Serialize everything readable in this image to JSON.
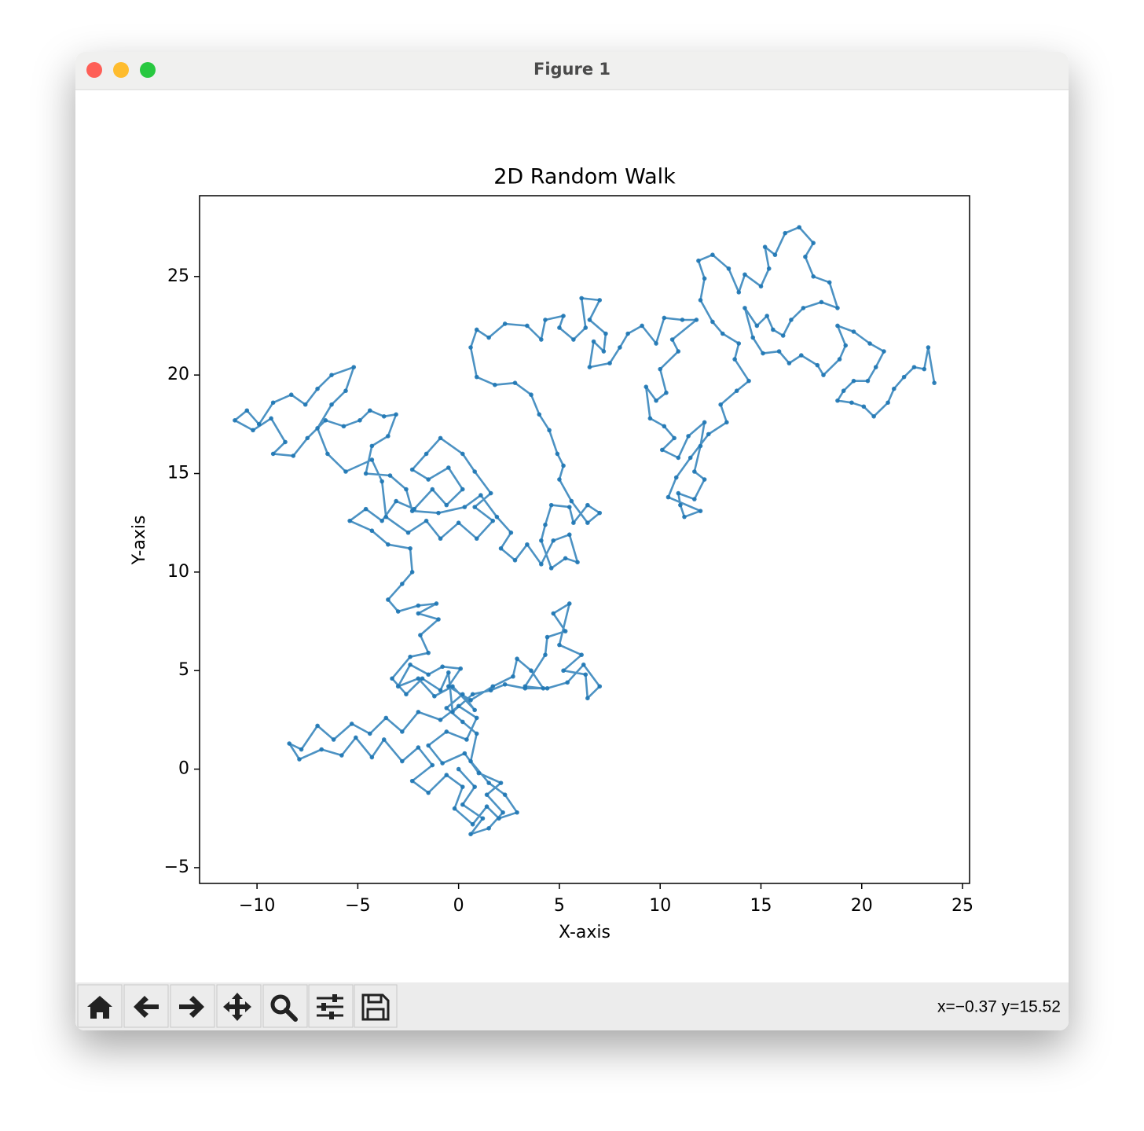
{
  "window_title": "Figure 1",
  "status": "x=−0.37 y=15.52",
  "chart_data": {
    "type": "line",
    "title": "2D Random Walk",
    "xlabel": "X-axis",
    "ylabel": "Y-axis",
    "color": "#1f77b4",
    "xlim": [
      -12.85,
      25.35
    ],
    "ylim": [
      -5.8,
      29.1
    ],
    "xticks": [
      {
        "value": -10,
        "label": "−10"
      },
      {
        "value": -5,
        "label": "−5"
      },
      0,
      5,
      10,
      15,
      20,
      25
    ],
    "yticks": [
      {
        "value": -5,
        "label": "−5"
      },
      0,
      5,
      10,
      15,
      20,
      25
    ],
    "x": [
      0,
      0.8,
      0.2,
      1.2,
      0.6,
      1.5,
      2.2,
      1.4,
      2.1,
      1.0,
      0.3,
      -0.8,
      -1.5,
      -0.6,
      0.4,
      0.9,
      0,
      -0.9,
      -2.0,
      -2.8,
      -3.6,
      -4.4,
      -5.3,
      -6.2,
      -7.0,
      -7.8,
      -8.4,
      -7.9,
      -6.8,
      -5.8,
      -5.1,
      -4.3,
      -3.7,
      -2.8,
      -2.0,
      -1.3,
      -2.3,
      -1.5,
      -0.6,
      0.2,
      -0.2,
      0.7,
      1.4,
      2.0,
      2.9,
      2.3,
      1.5,
      0.6,
      0.9,
      0.2,
      -0.6,
      0.2,
      0.8,
      -0.3,
      -1.2,
      -2.0,
      -3.0,
      -2.4,
      -1.5,
      -0.8,
      0.1,
      -0.5,
      0.6,
      1.7,
      2.7,
      2.9,
      3.6,
      4.2,
      3.3,
      4.3,
      4.4,
      5.3,
      4.7,
      5.5,
      5.0,
      6.1,
      5.2,
      6.3,
      6.4,
      7.0,
      6.2,
      5.4,
      4.4,
      3.3,
      2.3,
      1.6,
      0.7,
      -0.3,
      -0.5,
      -0.9,
      -1.8,
      -2.6,
      -3.3,
      -2.4,
      -1.5,
      -1.9,
      -1.0,
      -2.0,
      -1.1,
      -2.0,
      -3.0,
      -3.5,
      -2.8,
      -2.3,
      -2.4,
      -3.5,
      -4.3,
      -5.4,
      -4.6,
      -3.8,
      -3.1,
      -2.2,
      -1.3,
      -0.6,
      0.2,
      -0.5,
      -1.5,
      -2.3,
      -1.6,
      -0.9,
      0.2,
      0.8,
      1.6,
      0.8,
      1.7,
      0.9,
      0,
      -0.9,
      -1.6,
      -2.5,
      -3.6,
      -3.8,
      -4.3,
      -5.6,
      -6.5,
      -7.0,
      -6.3,
      -5.6,
      -5.2,
      -6.3,
      -7.0,
      -7.6,
      -8.3,
      -9.2,
      -9.9,
      -10.5,
      -11.1,
      -10.2,
      -9.3,
      -8.6,
      -9.2,
      -8.2,
      -7.5,
      -6.6,
      -5.7,
      -4.9,
      -4.4,
      -3.7,
      -3.1,
      -3.5,
      -4.3,
      -4.6,
      -3.4,
      -2.6,
      -2.3,
      -1.0,
      0.3,
      1.1,
      1.9,
      2.6,
      2.1,
      2.8,
      3.4,
      4.1,
      4.7,
      5.5,
      5.9,
      5.3,
      4.6,
      4.1,
      4.3,
      4.6,
      5.5,
      5.7,
      6.4,
      7.0,
      6.4,
      5.6,
      5.0,
      5.2,
      4.9,
      4.5,
      4.0,
      3.6,
      2.8,
      1.8,
      0.9,
      0.6,
      0.9,
      1.5,
      2.3,
      3.4,
      4.1,
      4.3,
      5.2,
      5.0,
      5.7,
      6.3,
      6.1,
      7.0,
      6.5,
      7.3,
      7.2,
      6.7,
      6.5,
      7.5,
      8.0,
      8.4,
      9.1,
      9.8,
      10.2,
      11.1,
      11.8,
      10.6,
      10.9,
      10.0,
      10.3,
      9.8,
      9.3,
      9.5,
      10.2,
      10.7,
      10.1,
      10.9,
      11.4,
      12.2,
      12.0,
      11.7,
      12.2,
      11.7,
      10.9,
      11.0,
      11.2,
      12.0,
      10.4,
      10.8,
      11.5,
      12.4,
      13.3,
      13.0,
      13.8,
      14.4,
      13.7,
      13.9,
      13.1,
      12.6,
      12.0,
      12.2,
      11.9,
      12.6,
      13.4,
      13.9,
      14.2,
      15.0,
      15.4,
      15.2,
      15.7,
      16.2,
      16.9,
      17.6,
      17.2,
      17.6,
      18.4,
      18.8,
      18.0,
      17.1,
      16.5,
      16.1,
      15.6,
      15.3,
      14.8,
      14.2,
      14.6,
      15.1,
      15.9,
      16.4,
      17.0,
      17.8,
      18.1,
      18.9,
      19.2,
      18.8,
      19.6,
      20.4,
      21.1,
      20.7,
      20.3,
      19.6,
      19.1,
      18.8,
      19.5,
      20.1,
      20.6,
      21.3,
      21.6,
      22.1,
      22.6,
      23.1,
      23.3,
      23.6
    ],
    "values": [
      0,
      -0.9,
      -1.8,
      -2.5,
      -3.3,
      -3.0,
      -2.2,
      -1.3,
      -0.7,
      -0.2,
      0.8,
      0.3,
      1.2,
      1.9,
      1.5,
      2.6,
      3.2,
      2.5,
      2.9,
      1.9,
      2.6,
      1.8,
      2.3,
      1.5,
      2.2,
      1.0,
      1.3,
      0.5,
      1.0,
      0.7,
      1.6,
      0.6,
      1.5,
      0.4,
      1.1,
      0.2,
      -0.6,
      -1.2,
      -0.3,
      -0.9,
      -2.0,
      -2.8,
      -1.9,
      -2.5,
      -2.2,
      -1.3,
      -0.7,
      0.4,
      1.8,
      2.4,
      3.1,
      3.8,
      3.0,
      4.2,
      3.7,
      4.6,
      4.2,
      5.3,
      4.8,
      5.2,
      5.1,
      4.2,
      3.5,
      4.2,
      4.7,
      5.6,
      5.0,
      4.1,
      4.2,
      5.8,
      6.7,
      7.0,
      7.9,
      8.4,
      6.3,
      5.8,
      5.0,
      4.8,
      3.6,
      4.2,
      5.3,
      4.4,
      4.1,
      4.1,
      4.3,
      4.0,
      3.8,
      2.9,
      4.9,
      4.0,
      4.6,
      3.8,
      4.6,
      5.7,
      5.9,
      6.8,
      7.6,
      7.9,
      8.4,
      8.3,
      8.0,
      8.6,
      9.4,
      10.0,
      11.2,
      11.4,
      12.1,
      12.6,
      13.2,
      12.6,
      13.6,
      13.2,
      14.2,
      13.4,
      14.2,
      15.3,
      14.7,
      15.2,
      16.0,
      16.8,
      16.0,
      15.1,
      14.0,
      13.3,
      12.6,
      11.7,
      12.5,
      11.7,
      12.6,
      12.0,
      12.8,
      14.6,
      15.7,
      15.1,
      16.0,
      17.3,
      18.5,
      19.2,
      20.4,
      20.0,
      19.3,
      18.5,
      19.0,
      18.6,
      17.5,
      18.2,
      17.7,
      17.2,
      17.8,
      16.6,
      16.0,
      15.9,
      16.8,
      17.7,
      17.4,
      17.7,
      18.2,
      17.9,
      18.0,
      16.9,
      16.4,
      15.0,
      14.9,
      14.2,
      13.1,
      13.0,
      13.3,
      13.9,
      12.8,
      12.0,
      11.2,
      10.6,
      11.4,
      10.4,
      11.6,
      11.9,
      10.5,
      10.7,
      10.2,
      11.6,
      12.4,
      13.4,
      13.3,
      12.5,
      13.4,
      13.0,
      12.5,
      13.6,
      14.7,
      15.4,
      16.0,
      17.2,
      18.0,
      19.0,
      19.6,
      19.5,
      19.9,
      21.4,
      22.3,
      21.9,
      22.6,
      22.5,
      21.8,
      22.8,
      23.0,
      22.4,
      21.8,
      22.4,
      23.9,
      23.8,
      22.8,
      22.1,
      21.2,
      21.7,
      20.4,
      20.6,
      21.4,
      22.1,
      22.5,
      21.6,
      22.9,
      22.8,
      22.8,
      21.8,
      21.2,
      20.3,
      19.1,
      18.7,
      19.4,
      17.8,
      17.4,
      16.8,
      16.2,
      15.8,
      16.9,
      17.6,
      16.4,
      15.1,
      14.7,
      13.7,
      14.0,
      13.4,
      12.8,
      13.1,
      13.8,
      14.8,
      15.8,
      17.0,
      17.6,
      18.5,
      19.2,
      19.7,
      20.8,
      21.6,
      22.1,
      22.7,
      23.8,
      24.9,
      25.8,
      26.1,
      25.4,
      24.2,
      25.1,
      24.5,
      25.4,
      26.5,
      26.1,
      27.2,
      27.5,
      26.7,
      26.0,
      25.0,
      24.7,
      23.4,
      23.7,
      23.4,
      22.8,
      22.0,
      22.3,
      23.0,
      22.5,
      23.4,
      21.9,
      21.1,
      21.2,
      20.6,
      21.0,
      20.5,
      20.0,
      20.8,
      21.5,
      22.5,
      22.2,
      21.6,
      21.2,
      20.4,
      19.7,
      19.7,
      19.2,
      18.7,
      18.6,
      18.4,
      17.9,
      18.6,
      19.3,
      19.9,
      20.4,
      20.3,
      21.4,
      19.6
    ]
  }
}
